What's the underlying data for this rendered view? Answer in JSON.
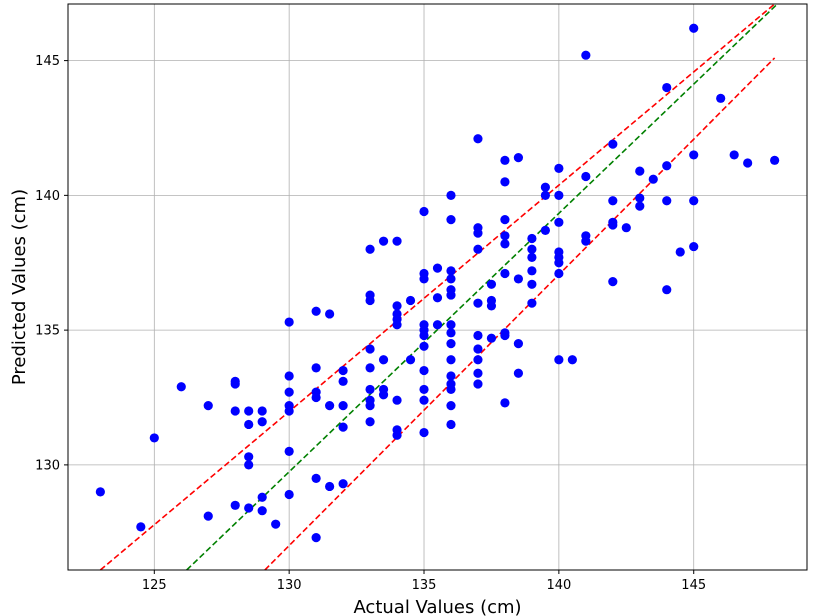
{
  "chart_data": {
    "type": "scatter",
    "title": "",
    "xlabel": "Actual Values (cm)",
    "ylabel": "Predicted Values (cm)",
    "xlim": [
      121.8,
      149.2
    ],
    "ylim": [
      126.1,
      147.1
    ],
    "x_ticks": [
      125,
      130,
      135,
      140,
      145
    ],
    "y_ticks": [
      130,
      135,
      140,
      145
    ],
    "grid": true,
    "legend": "none",
    "colors": {
      "points": "#0000ff",
      "ideal_line": "#008000",
      "bound_lines": "#ff0000",
      "grid": "#b0b0b0"
    },
    "lines": [
      {
        "name": "",
        "color": "#ff0000",
        "style": "dashed",
        "x": [
          123.0,
          148.0
        ],
        "y": [
          126.1,
          147.1
        ]
      },
      {
        "name": "",
        "color": "#008000",
        "style": "dashed",
        "x": [
          126.2,
          148.1
        ],
        "y": [
          126.1,
          147.1
        ]
      },
      {
        "name": "",
        "color": "#ff0000",
        "style": "dashed",
        "x": [
          129.1,
          148.0
        ],
        "y": [
          126.1,
          145.1
        ]
      }
    ],
    "points": [
      [
        123,
        129.0
      ],
      [
        124.5,
        127.7
      ],
      [
        125,
        131.0
      ],
      [
        126,
        132.9
      ],
      [
        127,
        132.2
      ],
      [
        127,
        128.1
      ],
      [
        128,
        133.1
      ],
      [
        128,
        133.0
      ],
      [
        128,
        132.0
      ],
      [
        128,
        128.5
      ],
      [
        128.5,
        132.0
      ],
      [
        128.5,
        131.5
      ],
      [
        128.5,
        130.3
      ],
      [
        128.5,
        130.0
      ],
      [
        128.5,
        128.4
      ],
      [
        129,
        132.0
      ],
      [
        129,
        131.6
      ],
      [
        129,
        128.8
      ],
      [
        129,
        128.3
      ],
      [
        129.5,
        127.8
      ],
      [
        130,
        135.3
      ],
      [
        130,
        133.3
      ],
      [
        130,
        132.7
      ],
      [
        130,
        132.2
      ],
      [
        130,
        132.0
      ],
      [
        130,
        130.5
      ],
      [
        130,
        128.9
      ],
      [
        131,
        135.7
      ],
      [
        131,
        133.6
      ],
      [
        131,
        132.7
      ],
      [
        131,
        132.5
      ],
      [
        131,
        129.5
      ],
      [
        131,
        127.3
      ],
      [
        131.5,
        135.6
      ],
      [
        131.5,
        132.2
      ],
      [
        131.5,
        129.2
      ],
      [
        132,
        133.5
      ],
      [
        132,
        133.1
      ],
      [
        132,
        132.2
      ],
      [
        132,
        131.4
      ],
      [
        132,
        129.3
      ],
      [
        133,
        138.0
      ],
      [
        133,
        136.3
      ],
      [
        133,
        136.1
      ],
      [
        133,
        134.3
      ],
      [
        133,
        133.6
      ],
      [
        133,
        132.8
      ],
      [
        133,
        132.4
      ],
      [
        133,
        132.2
      ],
      [
        133,
        131.6
      ],
      [
        133.5,
        138.3
      ],
      [
        133.5,
        133.9
      ],
      [
        133.5,
        132.8
      ],
      [
        133.5,
        132.6
      ],
      [
        134,
        138.3
      ],
      [
        134,
        135.9
      ],
      [
        134,
        135.6
      ],
      [
        134,
        135.4
      ],
      [
        134,
        135.2
      ],
      [
        134,
        132.4
      ],
      [
        134,
        131.3
      ],
      [
        134,
        131.1
      ],
      [
        134.5,
        136.1
      ],
      [
        134.5,
        133.9
      ],
      [
        135,
        139.4
      ],
      [
        135,
        137.1
      ],
      [
        135,
        136.9
      ],
      [
        135,
        135.2
      ],
      [
        135,
        135.0
      ],
      [
        135,
        134.8
      ],
      [
        135,
        134.4
      ],
      [
        135,
        133.5
      ],
      [
        135,
        132.8
      ],
      [
        135,
        132.4
      ],
      [
        135,
        131.2
      ],
      [
        135.5,
        137.3
      ],
      [
        135.5,
        136.2
      ],
      [
        135.5,
        135.2
      ],
      [
        136,
        140.0
      ],
      [
        136,
        139.1
      ],
      [
        136,
        137.2
      ],
      [
        136,
        136.9
      ],
      [
        136,
        136.5
      ],
      [
        136,
        136.3
      ],
      [
        136,
        135.2
      ],
      [
        136,
        134.9
      ],
      [
        136,
        134.5
      ],
      [
        136,
        133.9
      ],
      [
        136,
        133.3
      ],
      [
        136,
        133.0
      ],
      [
        136,
        132.8
      ],
      [
        136,
        132.2
      ],
      [
        136,
        131.5
      ],
      [
        137,
        142.1
      ],
      [
        137,
        138.8
      ],
      [
        137,
        138.6
      ],
      [
        137,
        138.0
      ],
      [
        137,
        136.0
      ],
      [
        137,
        134.8
      ],
      [
        137,
        134.3
      ],
      [
        137,
        133.9
      ],
      [
        137,
        133.4
      ],
      [
        137,
        133.0
      ],
      [
        137.5,
        136.7
      ],
      [
        137.5,
        136.1
      ],
      [
        137.5,
        135.9
      ],
      [
        137.5,
        134.7
      ],
      [
        138,
        141.3
      ],
      [
        138,
        140.5
      ],
      [
        138,
        139.1
      ],
      [
        138,
        138.5
      ],
      [
        138,
        138.2
      ],
      [
        138,
        137.1
      ],
      [
        138,
        134.9
      ],
      [
        138,
        134.8
      ],
      [
        138,
        132.3
      ],
      [
        138.5,
        141.4
      ],
      [
        138.5,
        136.9
      ],
      [
        138.5,
        134.5
      ],
      [
        138.5,
        133.4
      ],
      [
        139,
        138.4
      ],
      [
        139,
        138.0
      ],
      [
        139,
        137.7
      ],
      [
        139,
        137.2
      ],
      [
        139,
        136.7
      ],
      [
        139,
        136.0
      ],
      [
        139.5,
        140.3
      ],
      [
        139.5,
        140.0
      ],
      [
        139.5,
        138.7
      ],
      [
        140,
        141.0
      ],
      [
        140,
        140.0
      ],
      [
        140,
        139.0
      ],
      [
        140,
        137.9
      ],
      [
        140,
        137.7
      ],
      [
        140,
        137.5
      ],
      [
        140,
        137.1
      ],
      [
        140,
        133.9
      ],
      [
        140.5,
        133.9
      ],
      [
        141,
        145.2
      ],
      [
        141,
        140.7
      ],
      [
        141,
        138.5
      ],
      [
        141,
        138.3
      ],
      [
        142,
        141.9
      ],
      [
        142,
        139.8
      ],
      [
        142,
        139.0
      ],
      [
        142,
        138.9
      ],
      [
        142,
        136.8
      ],
      [
        142.5,
        138.8
      ],
      [
        143,
        140.9
      ],
      [
        143,
        139.9
      ],
      [
        143,
        139.6
      ],
      [
        143.5,
        140.6
      ],
      [
        144,
        144.0
      ],
      [
        144,
        141.1
      ],
      [
        144,
        139.8
      ],
      [
        144,
        136.5
      ],
      [
        144.5,
        137.9
      ],
      [
        145,
        146.2
      ],
      [
        145,
        141.5
      ],
      [
        145,
        139.8
      ],
      [
        145,
        138.1
      ],
      [
        146,
        143.6
      ],
      [
        146.5,
        141.5
      ],
      [
        147,
        141.2
      ],
      [
        148,
        141.3
      ]
    ]
  }
}
